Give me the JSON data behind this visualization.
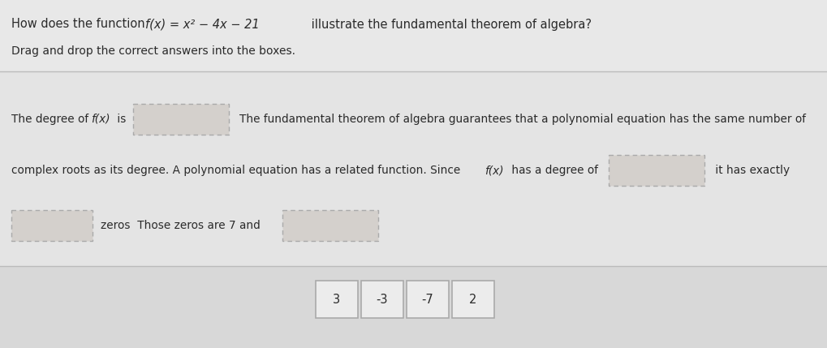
{
  "title_line1_plain": "How does the function ",
  "title_line1_math": "f(x) = x² − 4x − 21",
  "title_line1_end": " illustrate the fundamental theorem of algebra?",
  "title_line2": "Drag and drop the correct answers into the boxes.",
  "text_l1_a": "The degree of ",
  "text_l1_b": "f(x)",
  "text_l1_c": " is",
  "text_l1_d": "The fundamental theorem of algebra guarantees that a polynomial equation has the same number of",
  "text_l2": "complex roots as its degree. A polynomial equation has a related function. Since ",
  "text_l2_b": "f(x)",
  "text_l2_c": " has a degree of",
  "text_l2_d": "it has exactly",
  "text_l3_a": "zeros  Those zeros are 7 and",
  "answer_tiles": [
    "3",
    "-3",
    "-7",
    "2"
  ],
  "bg_top": "#e4e4e4",
  "bg_main": "#e0e0e0",
  "bg_bottom": "#d8d8d8",
  "box_fill": "#d4d0cc",
  "box_edge": "#aaaaaa",
  "tile_fill": "#ececec",
  "tile_edge": "#aaaaaa",
  "text_color": "#2a2a2a",
  "divider_color": "#bbbbbb",
  "font_size_h1": 10.5,
  "font_size_h2": 10.0,
  "font_size_body": 9.8,
  "font_size_tile": 10.5
}
